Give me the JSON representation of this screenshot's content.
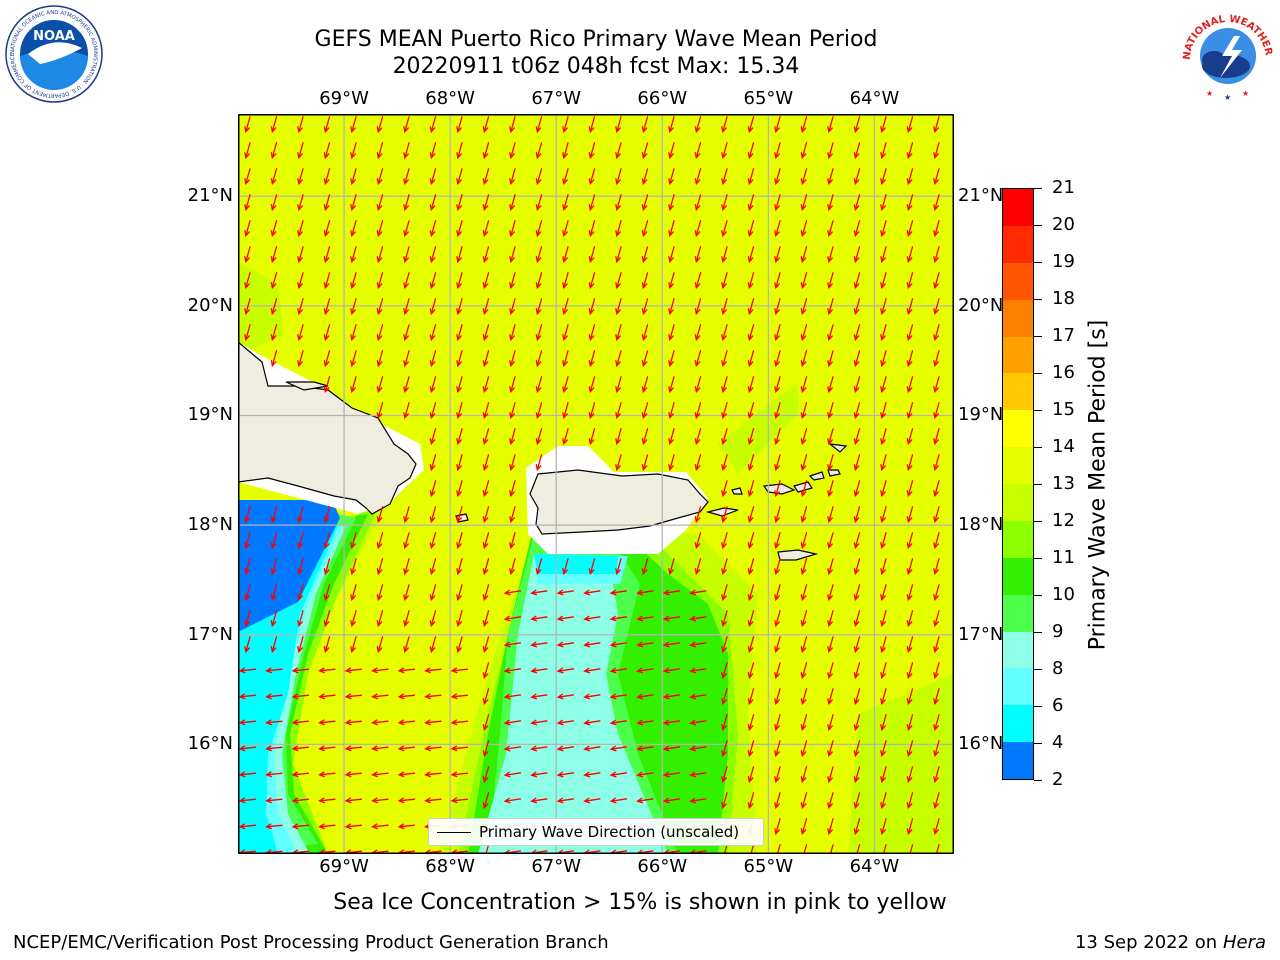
{
  "header": {
    "title_line1": "GEFS MEAN Puerto Rico Primary Wave Mean Period",
    "title_line2": "20220911 t06z 048h fcst   Max: 15.34"
  },
  "logos": {
    "left": {
      "name": "noaa-logo",
      "text": "NOAA",
      "ring_text": "NATIONAL OCEANIC AND ATMOSPHERIC ADMINISTRATION · U.S. DEPARTMENT OF COMMERCE"
    },
    "right": {
      "name": "nws-logo",
      "ring_text": "NATIONAL WEATHER SERVICE"
    }
  },
  "map": {
    "lon_labels": [
      "69°W",
      "68°W",
      "67°W",
      "66°W",
      "65°W",
      "64°W"
    ],
    "lat_labels": [
      "21°N",
      "20°N",
      "19°N",
      "18°N",
      "17°N",
      "16°N"
    ],
    "lon_range": [
      -70.0,
      -63.25
    ],
    "lat_range": [
      15.0,
      21.75
    ],
    "projection": "equirectangular",
    "gridlines": true,
    "land_color": "#efece0",
    "arrow_color": "#ff0000",
    "arrow_legend": "Primary Wave Direction (unscaled)",
    "max_value": 15.34
  },
  "colorbar": {
    "title": "Primary Wave Mean Period [s]",
    "labels": [
      "21",
      "20",
      "19",
      "18",
      "17",
      "16",
      "15",
      "14",
      "13",
      "12",
      "11",
      "10",
      "9",
      "8",
      "6",
      "4",
      "2"
    ],
    "colors": [
      "#ff0000",
      "#ff2a00",
      "#ff5500",
      "#ff7f00",
      "#ffa000",
      "#ffc800",
      "#ffff00",
      "#e6ff00",
      "#c8ff00",
      "#8cff00",
      "#32f000",
      "#4bff4b",
      "#8cffe6",
      "#64ffff",
      "#00ffff",
      "#0078ff",
      "#0000ff"
    ]
  },
  "footer": {
    "note": "Sea Ice Concentration > 15% is shown in pink to yellow",
    "credit_left": "NCEP/EMC/Verification Post Processing Product Generation Branch",
    "credit_date": "13 Sep 2022 on",
    "credit_host": "Hera"
  }
}
